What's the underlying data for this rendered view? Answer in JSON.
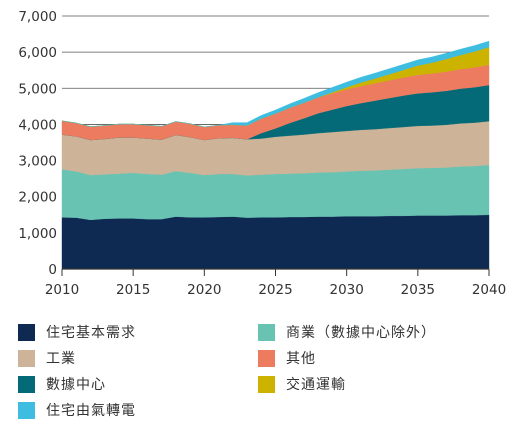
{
  "chart_data": {
    "type": "area",
    "stacked": true,
    "title": "",
    "xlabel": "",
    "ylabel": "",
    "x": [
      2010,
      2011,
      2012,
      2013,
      2014,
      2015,
      2016,
      2017,
      2018,
      2019,
      2020,
      2021,
      2022,
      2023,
      2024,
      2025,
      2026,
      2027,
      2028,
      2029,
      2030,
      2031,
      2032,
      2033,
      2034,
      2035,
      2036,
      2037,
      2038,
      2039,
      2040
    ],
    "xlim": [
      2010,
      2040
    ],
    "ylim": [
      0,
      7000
    ],
    "xticks": [
      2010,
      2015,
      2020,
      2025,
      2030,
      2035,
      2040
    ],
    "yticks": [
      0,
      1000,
      2000,
      3000,
      4000,
      5000,
      6000,
      7000
    ],
    "ytick_labels": [
      "0",
      "1,000",
      "2,000",
      "3,000",
      "4,000",
      "5,000",
      "6,000",
      "7,000"
    ],
    "grid": "horizontal",
    "legend_position": "bottom",
    "series": [
      {
        "name": "住宅基本需求",
        "color": "#0e2a52",
        "values": [
          1430,
          1420,
          1360,
          1390,
          1400,
          1400,
          1380,
          1380,
          1450,
          1430,
          1430,
          1440,
          1450,
          1420,
          1430,
          1430,
          1440,
          1440,
          1450,
          1450,
          1460,
          1460,
          1460,
          1470,
          1470,
          1480,
          1480,
          1480,
          1490,
          1490,
          1500
        ]
      },
      {
        "name": "商業（數據中心除外）",
        "color": "#68c3b2",
        "values": [
          1330,
          1280,
          1240,
          1230,
          1240,
          1260,
          1250,
          1230,
          1260,
          1230,
          1170,
          1190,
          1180,
          1170,
          1180,
          1200,
          1200,
          1210,
          1220,
          1230,
          1240,
          1260,
          1270,
          1280,
          1300,
          1310,
          1320,
          1330,
          1350,
          1360,
          1380
        ]
      },
      {
        "name": "工業",
        "color": "#cdb397",
        "values": [
          960,
          970,
          970,
          980,
          1000,
          980,
          980,
          970,
          1000,
          990,
          970,
          990,
          1000,
          1000,
          1000,
          1030,
          1050,
          1070,
          1090,
          1110,
          1120,
          1130,
          1140,
          1150,
          1160,
          1170,
          1170,
          1180,
          1190,
          1200,
          1210
        ]
      },
      {
        "name": "數據中心",
        "color": "#056a78",
        "values": [
          0,
          0,
          0,
          0,
          0,
          0,
          0,
          0,
          0,
          0,
          0,
          0,
          0,
          0,
          150,
          230,
          350,
          450,
          550,
          620,
          690,
          740,
          790,
          830,
          870,
          900,
          920,
          940,
          960,
          980,
          1000
        ]
      },
      {
        "name": "其他",
        "color": "#ec7b60",
        "values": [
          380,
          370,
          370,
          370,
          370,
          370,
          370,
          370,
          370,
          370,
          360,
          360,
          360,
          380,
          400,
          410,
          420,
          430,
          440,
          450,
          460,
          470,
          480,
          490,
          500,
          510,
          520,
          530,
          540,
          550,
          560
        ]
      },
      {
        "name": "交通運輸",
        "color": "#cbb300",
        "values": [
          0,
          0,
          0,
          0,
          0,
          0,
          0,
          0,
          0,
          0,
          0,
          0,
          0,
          0,
          0,
          0,
          0,
          0,
          0,
          30,
          60,
          100,
          130,
          170,
          210,
          260,
          300,
          350,
          390,
          440,
          490
        ]
      },
      {
        "name": "住宅由氣轉電",
        "color": "#3ebde0",
        "values": [
          0,
          0,
          0,
          0,
          0,
          0,
          0,
          0,
          0,
          0,
          0,
          0,
          60,
          80,
          90,
          100,
          110,
          120,
          130,
          135,
          140,
          145,
          150,
          152,
          154,
          156,
          158,
          160,
          162,
          164,
          165
        ]
      }
    ]
  },
  "legend": {
    "items": [
      {
        "label": "住宅基本需求",
        "color": "#0e2a52"
      },
      {
        "label": "商業（數據中心除外）",
        "color": "#68c3b2"
      },
      {
        "label": "工業",
        "color": "#cdb397"
      },
      {
        "label": "其他",
        "color": "#ec7b60"
      },
      {
        "label": "數據中心",
        "color": "#056a78"
      },
      {
        "label": "交通運輸",
        "color": "#cbb300"
      },
      {
        "label": "住宅由氣轉電",
        "color": "#3ebde0"
      }
    ]
  }
}
